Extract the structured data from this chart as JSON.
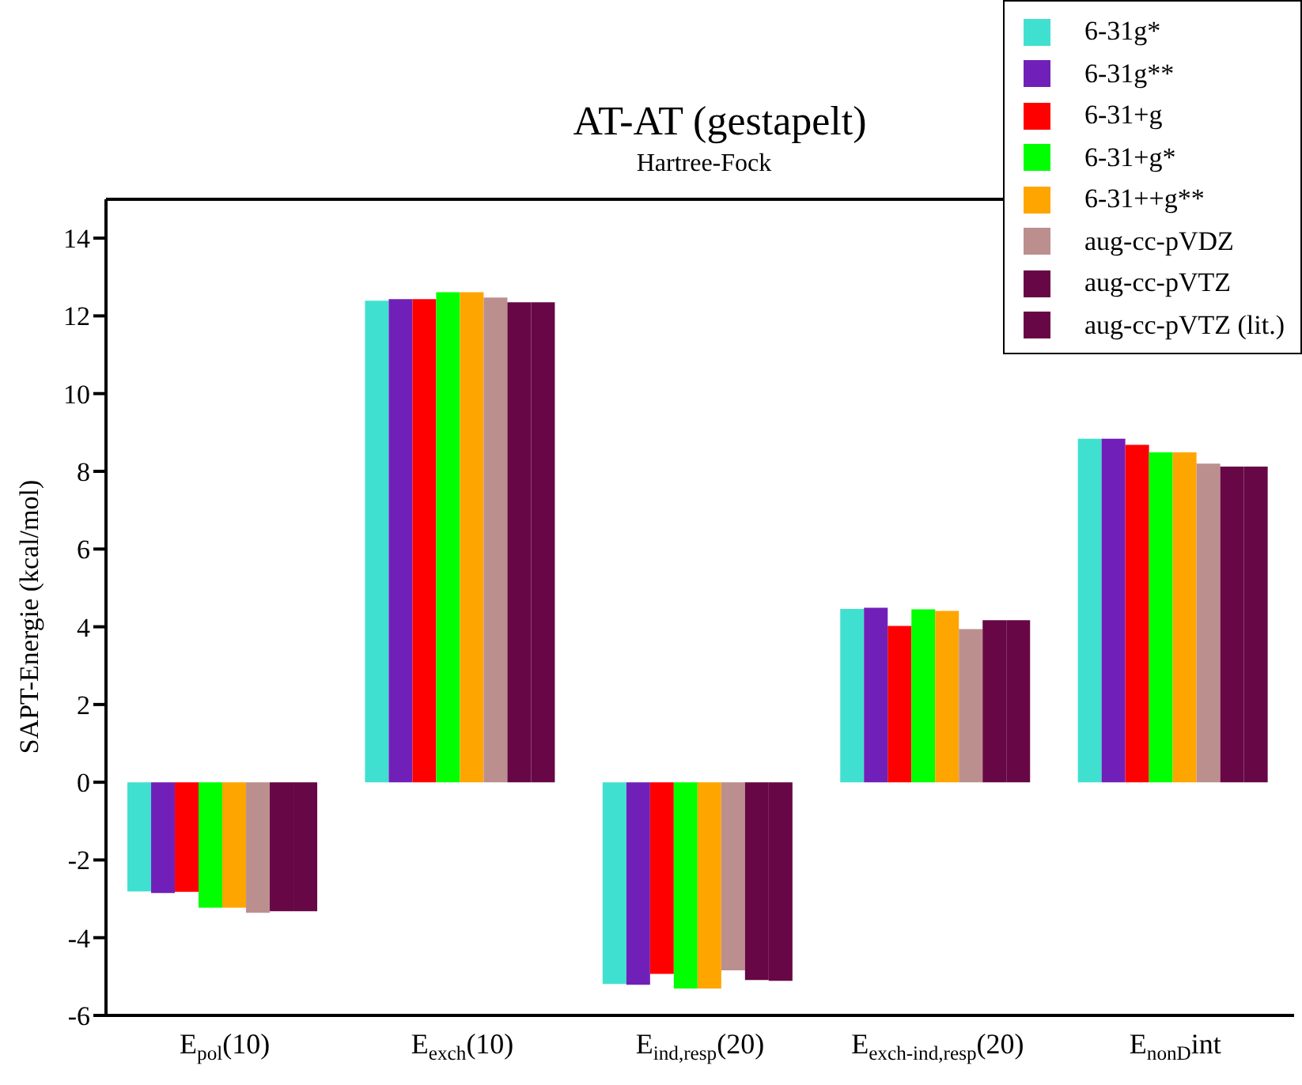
{
  "chart_data": {
    "type": "bar",
    "title": "AT-AT (gestapelt)",
    "subtitle": "Hartree-Fock",
    "ylabel": "SAPT-Energie (kcal/mol)",
    "categories": [
      "E$_{pol}$(10)",
      "E$_{exch}$(10)",
      "E$_{ind,resp}$(20)",
      "E$_{exch-ind,resp}$(20)",
      "E$_{nonD}$int"
    ],
    "series": [
      {
        "name": "6-31g*",
        "color": "#40e0d0",
        "values": [
          -2.81,
          12.39,
          -5.19,
          4.46,
          8.84
        ]
      },
      {
        "name": "6-31g**",
        "color": "#7020b8",
        "values": [
          -2.85,
          12.43,
          -5.21,
          4.49,
          8.84
        ]
      },
      {
        "name": "6-31+g",
        "color": "#ff0000",
        "values": [
          -2.82,
          12.43,
          -4.93,
          4.02,
          8.68
        ]
      },
      {
        "name": "6-31+g*",
        "color": "#00ff00",
        "values": [
          -3.23,
          12.61,
          -5.31,
          4.45,
          8.49
        ]
      },
      {
        "name": "6-31++g**",
        "color": "#ffa500",
        "values": [
          -3.23,
          12.61,
          -5.31,
          4.41,
          8.49
        ]
      },
      {
        "name": "aug-cc-pVDZ",
        "color": "#bc8f8f",
        "values": [
          -3.36,
          12.47,
          -4.84,
          3.94,
          8.2
        ]
      },
      {
        "name": "aug-cc-pVTZ",
        "color": "#670745",
        "values": [
          -3.32,
          12.35,
          -5.09,
          4.17,
          8.12
        ]
      },
      {
        "name": "aug-cc-pVTZ (lit.)",
        "color": "#670745",
        "values": [
          -3.32,
          12.35,
          -5.11,
          4.17,
          8.12
        ]
      }
    ],
    "ylim": [
      -6,
      15
    ],
    "yticks": [
      -6,
      -4,
      -2,
      0,
      2,
      4,
      6,
      8,
      10,
      12,
      14
    ],
    "legend": "top right"
  }
}
